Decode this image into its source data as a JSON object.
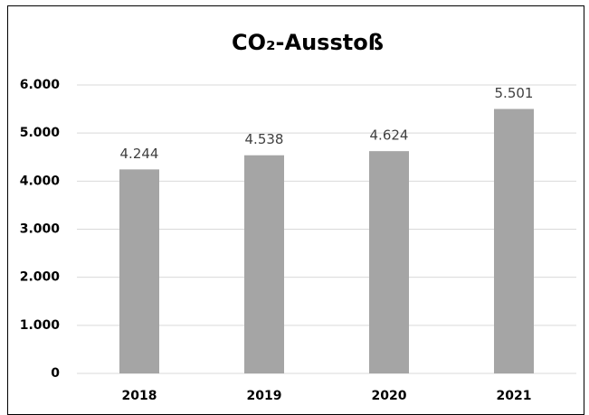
{
  "chart_data": {
    "type": "bar",
    "title": "CO₂-Ausstoß",
    "categories": [
      "2018",
      "2019",
      "2020",
      "2021"
    ],
    "values": [
      4244,
      4538,
      4624,
      5501
    ],
    "value_labels": [
      "4.244",
      "4.538",
      "4.624",
      "5.501"
    ],
    "color": "#a5a5a5",
    "ylim": [
      0,
      6000
    ],
    "yticks": [
      0,
      {
        "value": 1000,
        "label": "1.000"
      },
      {
        "value": 2000,
        "label": "2.000"
      },
      {
        "value": 3000,
        "label": "3.000"
      },
      {
        "value": 4000,
        "label": "4.000"
      },
      {
        "value": 5000,
        "label": "5.000"
      },
      {
        "value": 6000,
        "label": "6.000"
      }
    ],
    "grid": true
  }
}
